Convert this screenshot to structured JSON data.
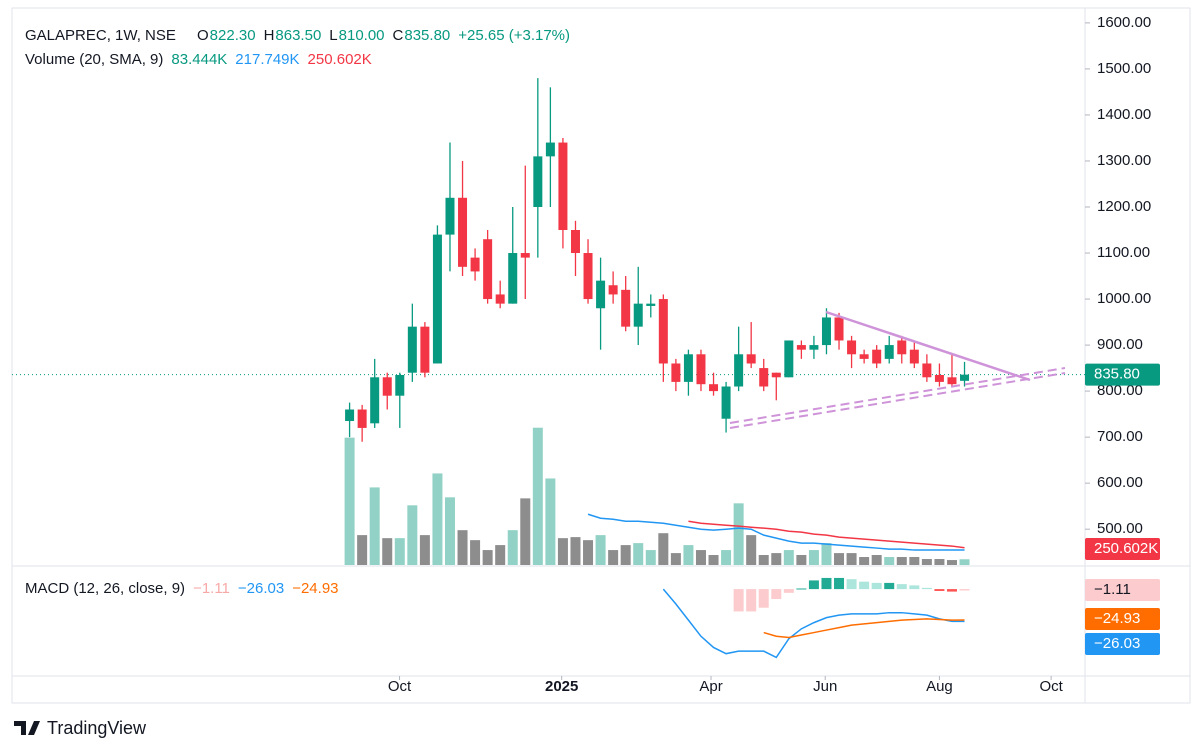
{
  "chart_data": {
    "type": "candlestick",
    "legend": {
      "symbol": "GALAPREC, 1W, NSE",
      "items": [
        {
          "label": "O",
          "value": "822.30"
        },
        {
          "label": "H",
          "value": "863.50"
        },
        {
          "label": "L",
          "value": "810.00"
        },
        {
          "label": "C",
          "value": "835.80"
        }
      ],
      "change": "+25.65 (+3.17%)"
    },
    "candles": {
      "open": [
        735,
        760,
        730,
        830,
        790,
        840,
        940,
        860,
        1140,
        1220,
        1090,
        1130,
        1010,
        990,
        1100,
        1200,
        1310,
        1340,
        1150,
        1100,
        980,
        1030,
        1020,
        940,
        985,
        1000,
        860,
        820,
        880,
        815,
        740,
        810,
        880,
        850,
        840,
        830,
        900,
        890,
        900,
        960,
        910,
        880,
        890,
        870,
        910,
        890,
        860,
        835,
        830,
        822.3
      ],
      "high": [
        775,
        770,
        870,
        840,
        840,
        990,
        950,
        1160,
        1340,
        1300,
        1110,
        1150,
        1040,
        1200,
        1290,
        1480,
        1460,
        1350,
        1170,
        1130,
        1090,
        1060,
        1050,
        1070,
        1010,
        1010,
        870,
        890,
        890,
        840,
        820,
        940,
        950,
        870,
        840,
        910,
        910,
        920,
        980,
        970,
        920,
        890,
        900,
        920,
        920,
        910,
        880,
        860,
        880,
        863.5
      ],
      "low": [
        700,
        690,
        720,
        760,
        720,
        820,
        830,
        860,
        1060,
        1050,
        1040,
        990,
        980,
        990,
        1000,
        1090,
        1200,
        1110,
        1050,
        990,
        890,
        990,
        930,
        900,
        960,
        820,
        800,
        790,
        800,
        790,
        710,
        800,
        850,
        800,
        780,
        830,
        870,
        870,
        880,
        890,
        850,
        860,
        850,
        860,
        860,
        850,
        820,
        810,
        810,
        810
      ],
      "close": [
        760,
        720,
        830,
        790,
        835,
        940,
        840,
        1140,
        1220,
        1070,
        1060,
        1000,
        990,
        1100,
        1090,
        1310,
        1340,
        1150,
        1100,
        1000,
        1040,
        1010,
        940,
        990,
        990,
        860,
        820,
        880,
        815,
        800,
        810,
        880,
        860,
        810,
        830,
        910,
        890,
        900,
        960,
        910,
        880,
        870,
        860,
        900,
        880,
        860,
        830,
        820,
        815,
        835.8
      ],
      "up_color": "#089981",
      "down_color": "#f23645"
    },
    "ylim": [
      420,
      1628
    ],
    "yticks": [
      {
        "value": 500,
        "label": "500.00"
      },
      {
        "value": 600,
        "label": "600.00"
      },
      {
        "value": 700,
        "label": "700.00"
      },
      {
        "value": 800,
        "label": "800.00"
      },
      {
        "value": 900,
        "label": "900.00"
      },
      {
        "value": 1000,
        "label": "1000.00"
      },
      {
        "value": 1100,
        "label": "1100.00"
      },
      {
        "value": 1200,
        "label": "1200.00"
      },
      {
        "value": 1300,
        "label": "1300.00"
      },
      {
        "value": 1400,
        "label": "1400.00"
      },
      {
        "value": 1500,
        "label": "1500.00"
      },
      {
        "value": 1600,
        "label": "1600.00"
      }
    ],
    "last_price": {
      "value": 835.8,
      "label": "835.80"
    },
    "xlim": [
      -26.9,
      58.6
    ],
    "xticks": [
      {
        "value": 3.98,
        "label": "Oct"
      },
      {
        "value": 16.9,
        "label": "2025"
      },
      {
        "value": 28.8,
        "label": "Apr"
      },
      {
        "value": 37.9,
        "label": "Jun"
      },
      {
        "value": 47,
        "label": "Aug"
      },
      {
        "value": 55.9,
        "label": "Oct"
      }
    ],
    "volume": {
      "title": "Volume (20, SMA, 9)",
      "ylim": [
        0,
        2600
      ],
      "values": [
        1850,
        434,
        1127,
        390,
        390,
        867,
        434,
        1330,
        983,
        506,
        361,
        217,
        289,
        506,
        968,
        1994,
        1257,
        390,
        405,
        361,
        434,
        217,
        289,
        318,
        217,
        462,
        173,
        289,
        217,
        145,
        217,
        896,
        434,
        145,
        173,
        217,
        145,
        217,
        318,
        173,
        173,
        116,
        145,
        116,
        116,
        116,
        87,
        87,
        72,
        83.444
      ],
      "value_label": "83.444K",
      "up_color": "#92d2c6",
      "down_color": "#8d8d8d",
      "sma": [
        {
          "color": "#2196f3",
          "label": "217.749K",
          "values": [
            null,
            null,
            null,
            null,
            null,
            null,
            null,
            null,
            null,
            null,
            null,
            null,
            null,
            null,
            null,
            null,
            null,
            null,
            null,
            737,
            679,
            665,
            636,
            636,
            621,
            607,
            578,
            549,
            520,
            506,
            520,
            535,
            520,
            434,
            390,
            347,
            318,
            318,
            303,
            289,
            275,
            260,
            246,
            231,
            231,
            217,
            217,
            217,
            217,
            217.749
          ]
        },
        {
          "color": "#f23645",
          "label": "250.602K",
          "values": [
            null,
            null,
            null,
            null,
            null,
            null,
            null,
            null,
            null,
            null,
            null,
            null,
            null,
            null,
            null,
            null,
            null,
            null,
            null,
            null,
            null,
            null,
            null,
            null,
            null,
            null,
            null,
            636,
            607,
            592,
            578,
            564,
            549,
            535,
            520,
            491,
            477,
            448,
            434,
            405,
            390,
            376,
            361,
            347,
            332,
            318,
            303,
            289,
            275,
            250.602
          ]
        }
      ]
    },
    "macd": {
      "title": "MACD (12, 26, close, 9)",
      "ylim": [
        -70,
        17
      ],
      "histogram": {
        "label": "−1.11",
        "values": [
          null,
          null,
          null,
          null,
          null,
          null,
          null,
          null,
          null,
          null,
          null,
          null,
          null,
          null,
          null,
          null,
          null,
          null,
          null,
          null,
          null,
          null,
          null,
          null,
          null,
          null,
          null,
          null,
          null,
          null,
          null,
          -18,
          -18,
          -15,
          -8,
          -3,
          0.5,
          7,
          9,
          9,
          8,
          6,
          5,
          5,
          4,
          3,
          1,
          -1.5,
          -2,
          -1.11
        ]
      },
      "macd_line": {
        "label": "−26.03",
        "color": "#2196f3",
        "values": [
          null,
          null,
          null,
          null,
          null,
          null,
          null,
          null,
          null,
          null,
          null,
          null,
          null,
          null,
          null,
          null,
          null,
          null,
          null,
          null,
          null,
          null,
          null,
          null,
          null,
          0,
          -12,
          -25,
          -38,
          -47,
          -52,
          -50,
          -50,
          -50,
          -55,
          -40,
          -32,
          -27,
          -23,
          -21,
          -20,
          -20,
          -20,
          -19,
          -19,
          -20,
          -21,
          -24,
          -26,
          -26.03
        ]
      },
      "signal_line": {
        "label": "−24.93",
        "color": "#ff6d00",
        "values": [
          null,
          null,
          null,
          null,
          null,
          null,
          null,
          null,
          null,
          null,
          null,
          null,
          null,
          null,
          null,
          null,
          null,
          null,
          null,
          null,
          null,
          null,
          null,
          null,
          null,
          null,
          null,
          null,
          null,
          null,
          null,
          null,
          null,
          -35,
          -38,
          -39,
          -37,
          -35,
          -33,
          -31,
          -29,
          -28,
          -27,
          -26,
          -25,
          -24.5,
          -24,
          -24.5,
          -25,
          -24.93
        ]
      }
    },
    "brand": "TradingView"
  }
}
